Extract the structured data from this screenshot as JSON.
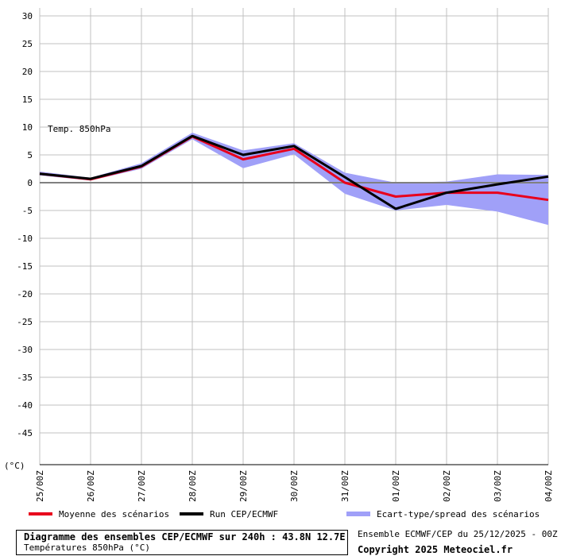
{
  "chart_data": {
    "type": "line",
    "ylabel": "(°C)",
    "annotation": "Temp. 850hPa",
    "ylim": [
      -50,
      30
    ],
    "yticks": [
      30,
      25,
      20,
      15,
      10,
      5,
      0,
      -5,
      -10,
      -15,
      -20,
      -25,
      -30,
      -35,
      -40,
      -45
    ],
    "categories": [
      "25/00Z",
      "26/00Z",
      "27/00Z",
      "28/00Z",
      "29/00Z",
      "30/00Z",
      "31/00Z",
      "01/00Z",
      "02/00Z",
      "03/00Z",
      "04/00Z"
    ],
    "grid": true,
    "series": [
      {
        "name": "Moyenne des scénarios",
        "color": "#e8001c",
        "values": [
          1.6,
          0.6,
          2.9,
          8.3,
          4.2,
          6.1,
          0.0,
          -2.5,
          -1.8,
          -1.8,
          -3.1
        ]
      },
      {
        "name": "Run CEP/ECMWF",
        "color": "#000000",
        "values": [
          1.6,
          0.7,
          3.0,
          8.4,
          5.0,
          6.6,
          1.0,
          -4.7,
          -1.8,
          -0.3,
          1.1
        ]
      }
    ],
    "band": {
      "name": "Ecart-type/spread des scénarios",
      "color": "#a0a0f8",
      "upper": [
        2.0,
        0.9,
        3.5,
        9.0,
        5.8,
        7.1,
        1.8,
        0.0,
        0.2,
        1.5,
        1.4
      ],
      "lower": [
        1.3,
        0.4,
        2.5,
        7.8,
        2.6,
        5.1,
        -2.0,
        -5.0,
        -4.0,
        -5.2,
        -7.6
      ]
    }
  },
  "legend": {
    "mean_label": "Moyenne des scénarios",
    "run_label": "Run CEP/ECMWF",
    "spread_label": "Ecart-type/spread des scénarios"
  },
  "footer": {
    "title": "Diagramme des ensembles CEP/ECMWF sur 240h : 43.8N 12.7E",
    "subtitle": "Températures 850hPa (°C)",
    "run_info": "Ensemble ECMWF/CEP du 25/12/2025 - 00Z",
    "copyright": "Copyright 2025 Meteociel.fr"
  }
}
